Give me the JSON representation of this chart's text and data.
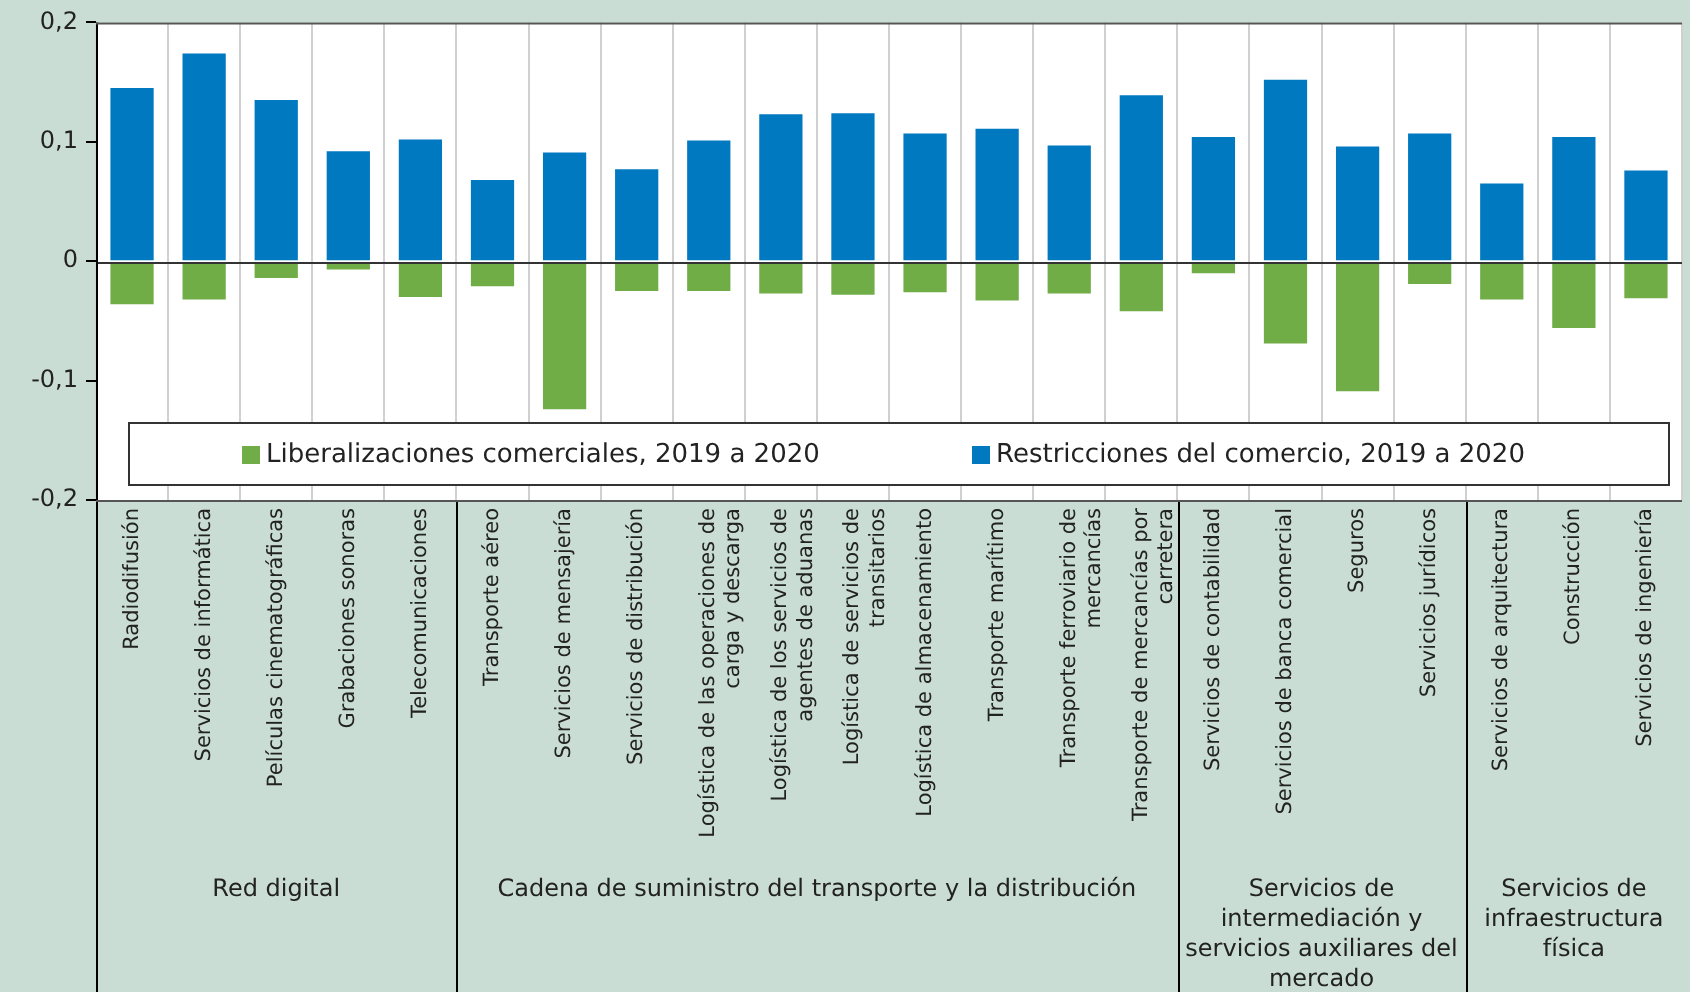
{
  "chart_data": {
    "type": "bar",
    "stacked": true,
    "grid": "x",
    "legend": "bottom",
    "categories": [
      "Radiodifusión",
      "Servicios de informática",
      "Películas cinematográficas",
      "Grabaciones sonoras",
      "Telecomunicaciones",
      "Transporte aéreo",
      "Servicios de mensajería",
      "Servicios de distribución",
      "Logística de las operaciones de carga y descarga",
      "Logística de los servicios de agentes de aduanas",
      "Logística de servicios de transitarios",
      "Logística de almacenamiento",
      "Transporte marítimo",
      "Transporte ferroviario de mercancías",
      "Transporte de mercancías por carretera",
      "Servicios de contabilidad",
      "Servicios de banca comercial",
      "Seguros",
      "Servicios jurídicos",
      "Servicios de arquitectura",
      "Construcción",
      "Servicios de ingeniería"
    ],
    "series": [
      {
        "name": "Liberalizaciones comerciales, 2019 a 2020",
        "color": "#70ad47",
        "values": [
          -0.036,
          -0.032,
          -0.014,
          -0.007,
          -0.03,
          -0.021,
          -0.124,
          -0.025,
          -0.025,
          -0.027,
          -0.028,
          -0.026,
          -0.033,
          -0.027,
          -0.042,
          -0.01,
          -0.069,
          -0.109,
          -0.019,
          -0.032,
          -0.056,
          -0.031
        ]
      },
      {
        "name": "Restricciones del comercio, 2019 a 2020",
        "color": "#0079c1",
        "values": [
          0.145,
          0.174,
          0.135,
          0.092,
          0.102,
          0.068,
          0.091,
          0.077,
          0.101,
          0.123,
          0.124,
          0.107,
          0.111,
          0.097,
          0.139,
          0.104,
          0.152,
          0.096,
          0.107,
          0.065,
          0.104,
          0.076
        ]
      }
    ],
    "ylim": [
      -0.2,
      0.2
    ],
    "yticks": [
      {
        "value": -0.2,
        "label": "-0,2"
      },
      {
        "value": -0.1,
        "label": "-0,1"
      },
      {
        "value": 0,
        "label": "0"
      },
      {
        "value": 0.1,
        "label": "0,1"
      },
      {
        "value": 0.2,
        "label": "0,2"
      }
    ],
    "annotations": [
      "Red digital",
      "Cadena de suministro del transporte y la distribución",
      "Servicios de intermediación y servicios auxiliares del mercado",
      "Servicios de infraestructura física"
    ]
  }
}
